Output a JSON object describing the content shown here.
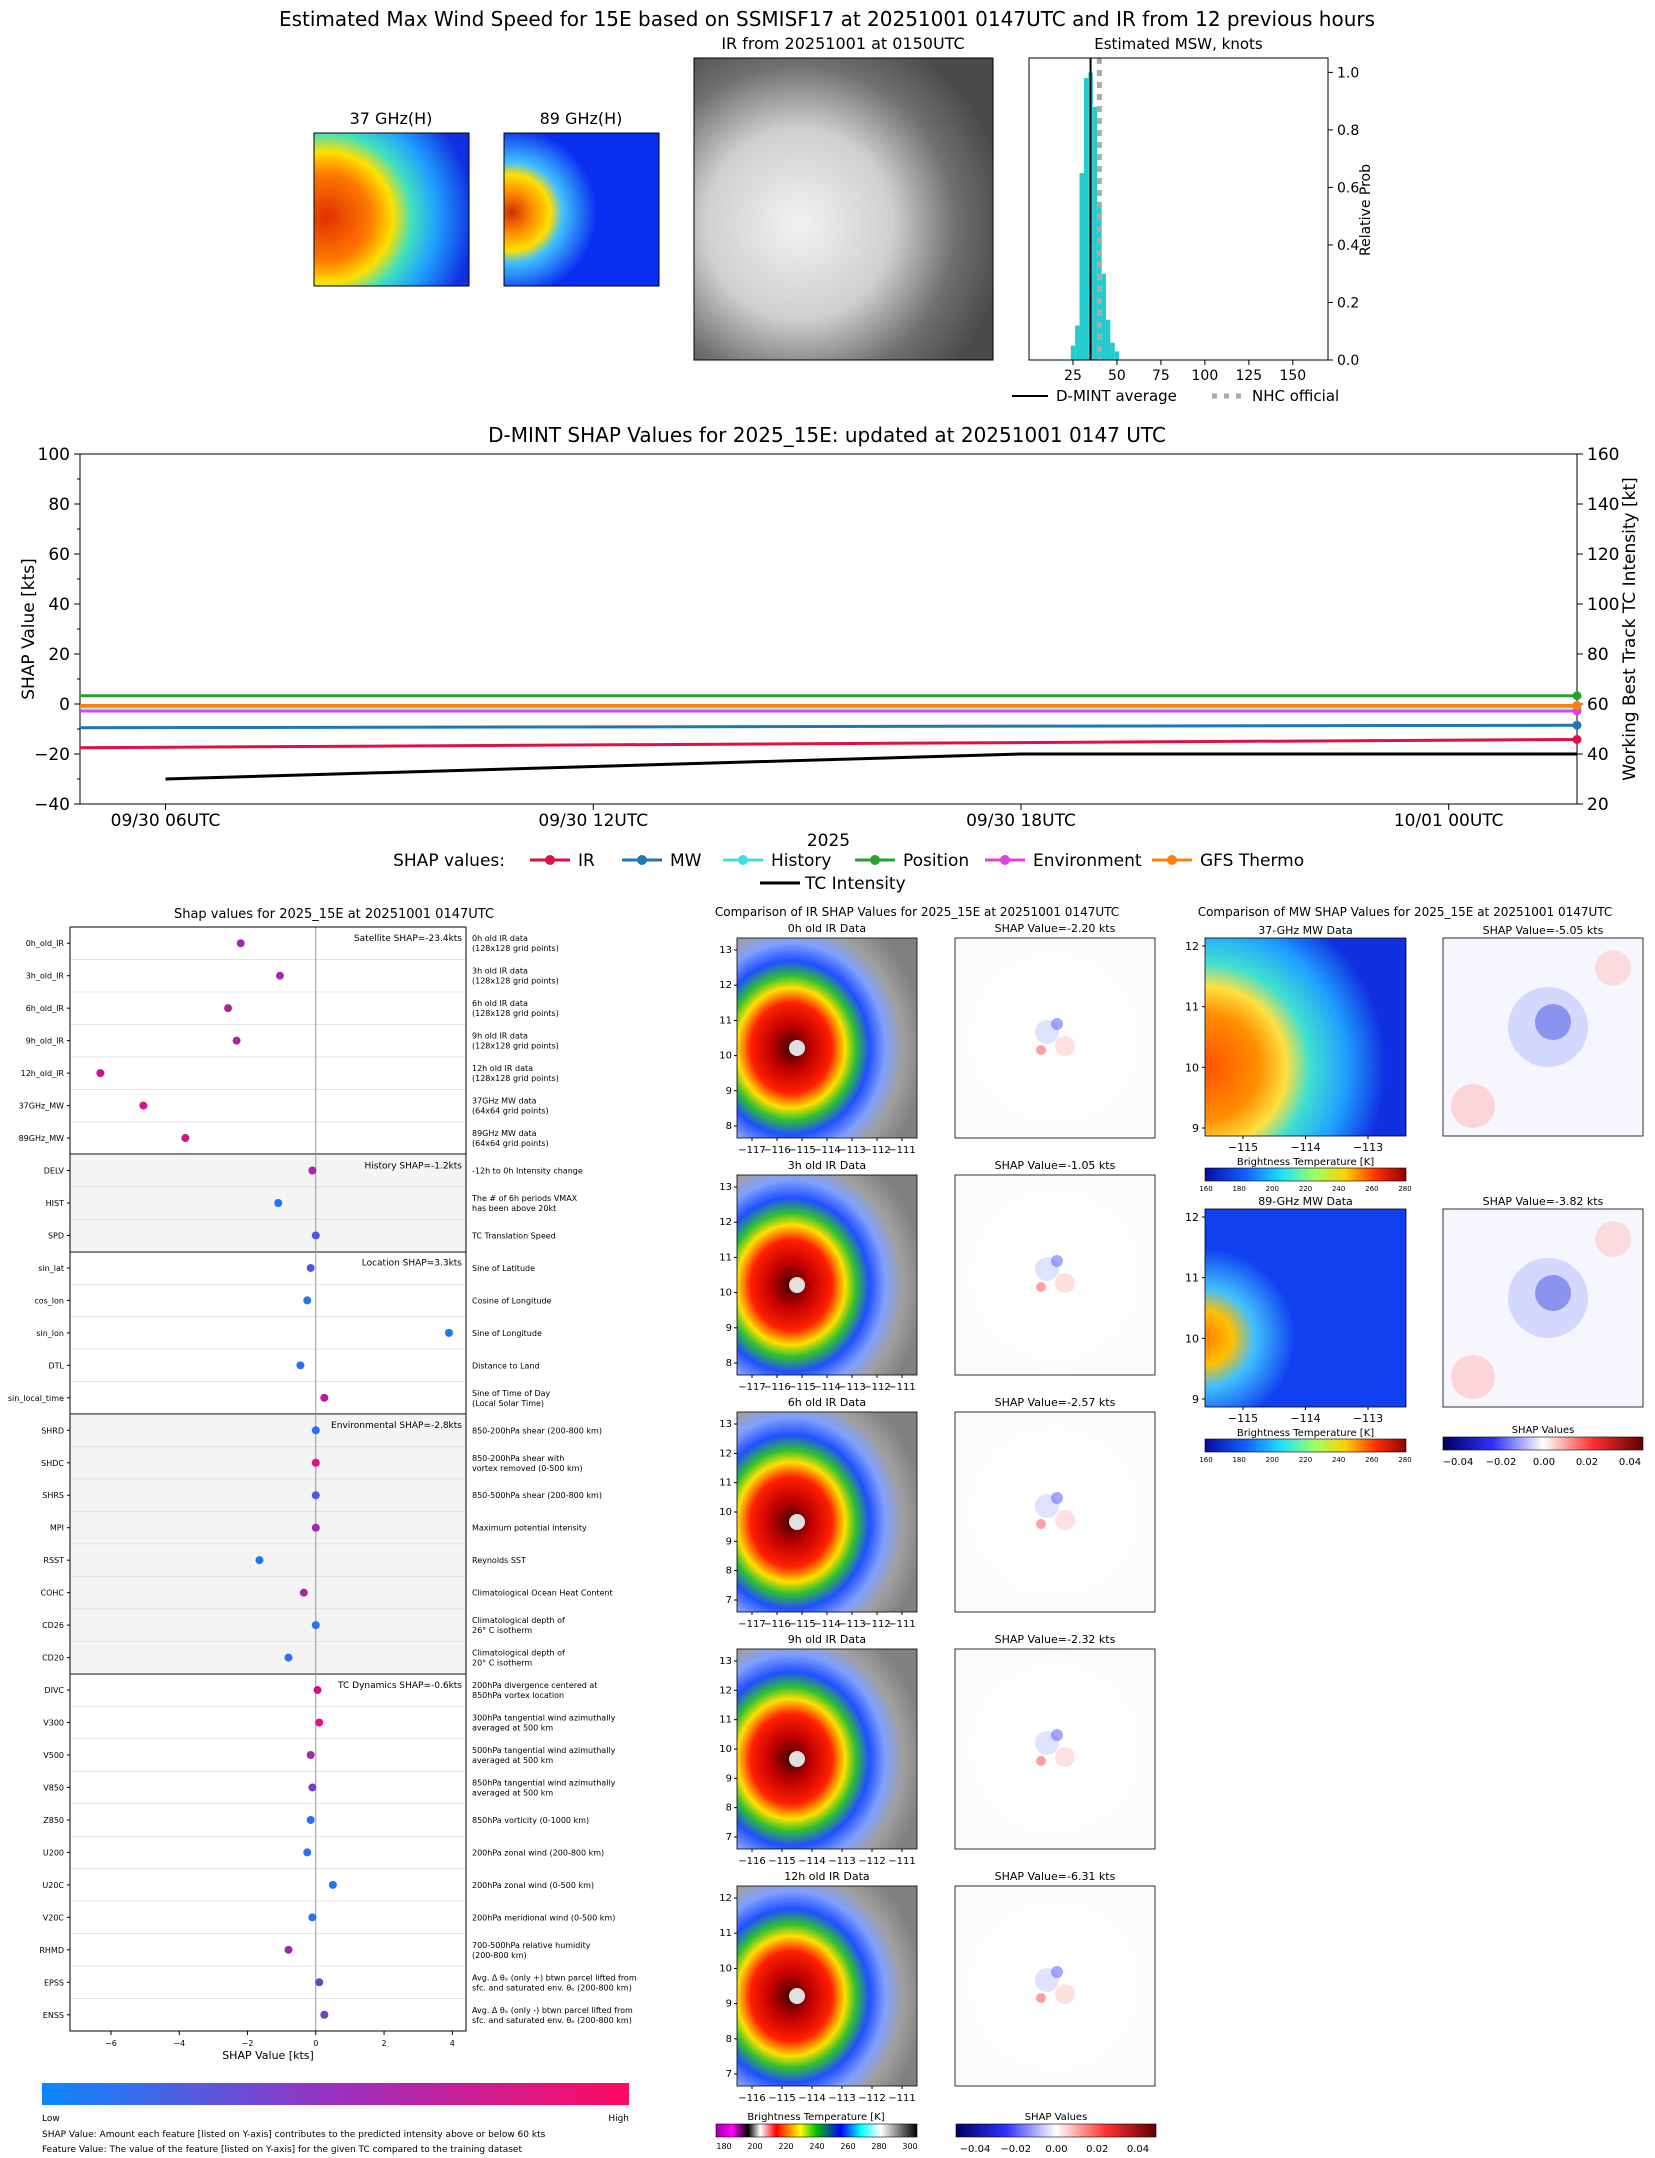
{
  "top": {
    "title": "Estimated Max Wind Speed for 15E based on SSMISF17 at 20251001 0147UTC and IR from 12 previous hours",
    "mw37_title": "37 GHz(H)",
    "mw89_title": "89 GHz(H)",
    "ir_title": "IR from 20251001 at 0150UTC"
  },
  "shap_timeline": {
    "title": "D-MINT SHAP Values for 2025_15E: updated at 20251001 0147 UTC",
    "xlabel": "2025",
    "legend_prefix": "SHAP values:",
    "intensity_label": "TC Intensity"
  },
  "features": {
    "title": "Shap values for 2025_15E at 20251001 0147UTC",
    "footnote1": "SHAP Value: Amount each feature [listed on Y-axis] contributes to the predicted intensity above or below 60 kts",
    "footnote2": "Feature Value: The value of the feature [listed on Y-axis] for the given TC compared to the training dataset",
    "colorbar_low": "Low",
    "colorbar_high": "High"
  },
  "ir_compare": {
    "title": "Comparison of IR SHAP Values for 2025_15E at 20251001 0147UTC",
    "bt_label": "Brightness Temperature [K]",
    "shap_label": "SHAP Values",
    "bt_ticks": [
      "180",
      "200",
      "220",
      "240",
      "260",
      "280",
      "300"
    ],
    "shap_ticks": [
      "−0.04",
      "−0.02",
      "0.00",
      "0.02",
      "0.04"
    ],
    "panels": [
      {
        "title": "0h old IR Data",
        "shap": "SHAP Value=-2.20 kts",
        "yt": [
          "13",
          "12",
          "11",
          "10",
          "9",
          "8"
        ],
        "xt": [
          "−117",
          "−116",
          "−115",
          "−114",
          "−113",
          "−112",
          "−111"
        ]
      },
      {
        "title": "3h old IR Data",
        "shap": "SHAP Value=-1.05 kts",
        "yt": [
          "13",
          "12",
          "11",
          "10",
          "9",
          "8"
        ],
        "xt": [
          "−117",
          "−116",
          "−115",
          "−114",
          "−113",
          "−112",
          "−111"
        ]
      },
      {
        "title": "6h old IR Data",
        "shap": "SHAP Value=-2.57 kts",
        "yt": [
          "13",
          "12",
          "11",
          "10",
          "9",
          "8",
          "7"
        ],
        "xt": [
          "−117",
          "−116",
          "−115",
          "−114",
          "−113",
          "−112",
          "−111"
        ]
      },
      {
        "title": "9h old IR Data",
        "shap": "SHAP Value=-2.32 kts",
        "yt": [
          "13",
          "12",
          "11",
          "10",
          "9",
          "8",
          "7"
        ],
        "xt": [
          "−116",
          "−115",
          "−114",
          "−113",
          "−112",
          "−111"
        ]
      },
      {
        "title": "12h old IR Data",
        "shap": "SHAP Value=-6.31 kts",
        "yt": [
          "12",
          "11",
          "10",
          "9",
          "8",
          "7"
        ],
        "xt": [
          "−116",
          "−115",
          "−114",
          "−113",
          "−112",
          "−111"
        ]
      }
    ]
  },
  "mw_compare": {
    "title": "Comparison of MW SHAP Values for 2025_15E at 20251001 0147UTC",
    "bt_label": "Brightness Temperature [K]",
    "shap_label": "SHAP Values",
    "bt_ticks": [
      "160",
      "180",
      "200",
      "220",
      "240",
      "260",
      "280"
    ],
    "shap_ticks": [
      "−0.04",
      "−0.02",
      "0.00",
      "0.02",
      "0.04"
    ],
    "panels": [
      {
        "title": "37-GHz MW Data",
        "shap": "SHAP Value=-5.05 kts",
        "yt": [
          "12",
          "11",
          "10",
          "9"
        ],
        "xt": [
          "−115",
          "−114",
          "−113"
        ]
      },
      {
        "title": "89-GHz MW Data",
        "shap": "SHAP Value=-3.82 kts",
        "yt": [
          "12",
          "11",
          "10",
          "9"
        ],
        "xt": [
          "−115",
          "−114",
          "−113"
        ]
      }
    ]
  },
  "chart_data": [
    {
      "type": "bar",
      "title": "Estimated MSW, knots",
      "ylabel": "Relative Prob",
      "xlim": [
        0,
        170
      ],
      "ylim": [
        0,
        1.05
      ],
      "xticks": [
        25,
        50,
        75,
        100,
        125,
        150
      ],
      "yticks": [
        0.0,
        0.2,
        0.4,
        0.6,
        0.8,
        1.0
      ],
      "bin_width": 2.5,
      "bins": [
        {
          "x": 25,
          "p": 0.05
        },
        {
          "x": 27.5,
          "p": 0.12
        },
        {
          "x": 30,
          "p": 0.65
        },
        {
          "x": 32.5,
          "p": 0.98
        },
        {
          "x": 35,
          "p": 1.0
        },
        {
          "x": 37.5,
          "p": 0.88
        },
        {
          "x": 40,
          "p": 0.55
        },
        {
          "x": 42.5,
          "p": 0.3
        },
        {
          "x": 45,
          "p": 0.14
        },
        {
          "x": 47.5,
          "p": 0.06
        },
        {
          "x": 50,
          "p": 0.03
        }
      ],
      "dmint_average": 35,
      "nhc_official": 40,
      "legend": [
        "D-MINT average",
        "NHC official"
      ],
      "bar_color": "#22cccc"
    },
    {
      "type": "line",
      "title": "D-MINT SHAP Values for 2025_15E: updated at 20251001 0147 UTC",
      "xlabel": "2025",
      "ylabel": "SHAP Value [kts]",
      "y2label": "Working Best Track TC Intensity [kt]",
      "x": [
        "09/30 06UTC",
        "09/30 12UTC",
        "09/30 18UTC",
        "10/01 00UTC"
      ],
      "x_hours": [
        0,
        6,
        12,
        18
      ],
      "xlim_hours": [
        -1.2,
        19.8
      ],
      "ylim": [
        -40,
        100
      ],
      "y2lim": [
        20,
        160
      ],
      "yticks": [
        -40,
        -20,
        0,
        20,
        40,
        60,
        80,
        100
      ],
      "y2ticks": [
        20,
        40,
        60,
        80,
        100,
        120,
        140,
        160
      ],
      "series": [
        {
          "name": "IR",
          "color": "#dd1144",
          "points": [
            [
              -1.2,
              -17.5
            ],
            [
              19.8,
              -14.2
            ]
          ]
        },
        {
          "name": "MW",
          "color": "#1f77b4",
          "points": [
            [
              -1.2,
              -9.5
            ],
            [
              19.8,
              -8.5
            ]
          ]
        },
        {
          "name": "History",
          "color": "#44dddd",
          "points": [
            [
              -1.2,
              -1.2
            ],
            [
              19.8,
              -1.2
            ]
          ]
        },
        {
          "name": "Position",
          "color": "#2ca02c",
          "points": [
            [
              -1.2,
              3.3
            ],
            [
              19.8,
              3.3
            ]
          ]
        },
        {
          "name": "Environment",
          "color": "#dd44dd",
          "points": [
            [
              -1.2,
              -2.8
            ],
            [
              19.8,
              -2.8
            ]
          ]
        },
        {
          "name": "GFS Thermo",
          "color": "#ff7f0e",
          "points": [
            [
              -1.2,
              -0.6
            ],
            [
              19.8,
              -0.6
            ]
          ]
        }
      ],
      "intensity": {
        "name": "TC Intensity",
        "color": "#000000",
        "points": [
          [
            0,
            30
          ],
          [
            6,
            35
          ],
          [
            12,
            40
          ],
          [
            18,
            40
          ],
          [
            19.8,
            40
          ]
        ]
      }
    },
    {
      "type": "scatter",
      "title": "Shap values for 2025_15E at 20251001 0147UTC",
      "xlabel": "SHAP Value [kts]",
      "xlim": [
        -7.2,
        4.4
      ],
      "xticks": [
        -6,
        -4,
        -2,
        0,
        2,
        4
      ],
      "groups": [
        {
          "label": "Satellite SHAP=-23.4kts",
          "shade": false,
          "start": 0
        },
        {
          "label": "History SHAP=-1.2kts",
          "shade": true,
          "start": 7
        },
        {
          "label": "Location SHAP=3.3kts",
          "shade": false,
          "start": 10
        },
        {
          "label": "Environmental SHAP=-2.8kts",
          "shade": true,
          "start": 15
        },
        {
          "label": "TC Dynamics SHAP=-0.6kts",
          "shade": false,
          "start": 23
        }
      ],
      "features": [
        {
          "name": "0h_old_IR",
          "value": -2.2,
          "color": "#a02aae",
          "desc": [
            "0h old IR data",
            "(128x128 grid points)"
          ]
        },
        {
          "name": "3h_old_IR",
          "value": -1.05,
          "color": "#a02aae",
          "desc": [
            "3h old IR data",
            "(128x128 grid points)"
          ]
        },
        {
          "name": "6h_old_IR",
          "value": -2.57,
          "color": "#b0229e",
          "desc": [
            "6h old IR data",
            "(128x128 grid points)"
          ]
        },
        {
          "name": "9h_old_IR",
          "value": -2.32,
          "color": "#b0229e",
          "desc": [
            "9h old IR data",
            "(128x128 grid points)"
          ]
        },
        {
          "name": "12h_old_IR",
          "value": -6.31,
          "color": "#d01090",
          "desc": [
            "12h old IR data",
            "(128x128 grid points)"
          ]
        },
        {
          "name": "37GHz_MW",
          "value": -5.05,
          "color": "#e0108a",
          "desc": [
            "37GHz MW data",
            "(64x64 grid points)"
          ]
        },
        {
          "name": "89GHz_MW",
          "value": -3.82,
          "color": "#d01090",
          "desc": [
            "89GHz MW data",
            "(64x64 grid points)"
          ]
        },
        {
          "name": "DELV",
          "value": -0.1,
          "color": "#b0229e",
          "desc": [
            "-12h to 0h Intensity change"
          ]
        },
        {
          "name": "HIST",
          "value": -1.1,
          "color": "#1a78f0",
          "desc": [
            "The # of 6h periods VMAX",
            "has been above 20kt"
          ]
        },
        {
          "name": "SPD",
          "value": 0.0,
          "color": "#4a5ae0",
          "desc": [
            "TC Translation Speed"
          ]
        },
        {
          "name": "sin_lat",
          "value": -0.15,
          "color": "#4a5ae0",
          "desc": [
            "Sine of Latitude"
          ]
        },
        {
          "name": "cos_lon",
          "value": -0.25,
          "color": "#2a70f0",
          "desc": [
            "Cosine of Longitude"
          ]
        },
        {
          "name": "sin_lon",
          "value": 3.9,
          "color": "#1a78f0",
          "desc": [
            "Sine of Longitude"
          ]
        },
        {
          "name": "DTL",
          "value": -0.45,
          "color": "#2a70f0",
          "desc": [
            "Distance to Land"
          ]
        },
        {
          "name": "sin_local_time",
          "value": 0.25,
          "color": "#c0189a",
          "desc": [
            "Sine of Time of Day",
            "(Local Solar Time)"
          ]
        },
        {
          "name": "SHRD",
          "value": 0.0,
          "color": "#2a70f0",
          "desc": [
            "850-200hPa shear (200-800 km)"
          ]
        },
        {
          "name": "SHDC",
          "value": 0.0,
          "color": "#e0108a",
          "desc": [
            "850-200hPa shear with",
            "vortex removed (0-500 km)"
          ]
        },
        {
          "name": "SHRS",
          "value": 0.0,
          "color": "#4a5ae0",
          "desc": [
            "850-500hPa shear (200-800 km)"
          ]
        },
        {
          "name": "MPI",
          "value": 0.0,
          "color": "#a02aae",
          "desc": [
            "Maximum potential intensity"
          ]
        },
        {
          "name": "RSST",
          "value": -1.65,
          "color": "#1a78f0",
          "desc": [
            "Reynolds SST"
          ]
        },
        {
          "name": "COHC",
          "value": -0.35,
          "color": "#a02aae",
          "desc": [
            "Climatological Ocean Heat Content"
          ]
        },
        {
          "name": "CD26",
          "value": 0.0,
          "color": "#2a70f0",
          "desc": [
            "Climatological depth of",
            "26° C isotherm"
          ]
        },
        {
          "name": "CD20",
          "value": -0.8,
          "color": "#2a70f0",
          "desc": [
            "Climatological depth of",
            "20° C isotherm"
          ]
        },
        {
          "name": "DIVC",
          "value": 0.05,
          "color": "#d01090",
          "desc": [
            "200hPa divergence centered at",
            "850hPa vortex location"
          ]
        },
        {
          "name": "V300",
          "value": 0.1,
          "color": "#f00a80",
          "desc": [
            "300hPa tangential wind azimuthally",
            "averaged at 500 km"
          ]
        },
        {
          "name": "V500",
          "value": -0.15,
          "color": "#a02aae",
          "desc": [
            "500hPa tangential wind azimuthally",
            "averaged at 500 km"
          ]
        },
        {
          "name": "V850",
          "value": -0.1,
          "color": "#7040c8",
          "desc": [
            "850hPa tangential wind azimuthally",
            "averaged at 500 km"
          ]
        },
        {
          "name": "Z850",
          "value": -0.15,
          "color": "#2a70f0",
          "desc": [
            "850hPa vorticity (0-1000 km)"
          ]
        },
        {
          "name": "U200",
          "value": -0.25,
          "color": "#2a70f0",
          "desc": [
            "200hPa zonal wind (200-800 km)"
          ]
        },
        {
          "name": "U20C",
          "value": 0.5,
          "color": "#2a70f0",
          "desc": [
            "200hPa zonal wind (0-500 km)"
          ]
        },
        {
          "name": "V20C",
          "value": -0.1,
          "color": "#2a70f0",
          "desc": [
            "200hPa meridional wind (0-500 km)"
          ]
        },
        {
          "name": "RHMD",
          "value": -0.8,
          "color": "#a02aae",
          "desc": [
            "700-500hPa relative humidity",
            "(200-800 km)"
          ]
        },
        {
          "name": "EPSS",
          "value": 0.1,
          "color": "#7040c8",
          "desc": [
            "Avg. Δ θₑ (only +) btwn parcel lifted from",
            "sfc. and saturated env. θₑ (200-800 km)"
          ]
        },
        {
          "name": "ENSS",
          "value": 0.25,
          "color": "#7040c8",
          "desc": [
            "Avg. Δ θₑ (only -) btwn parcel lifted from",
            "sfc. and saturated env. θₑ (200-800 km)"
          ]
        }
      ]
    }
  ]
}
